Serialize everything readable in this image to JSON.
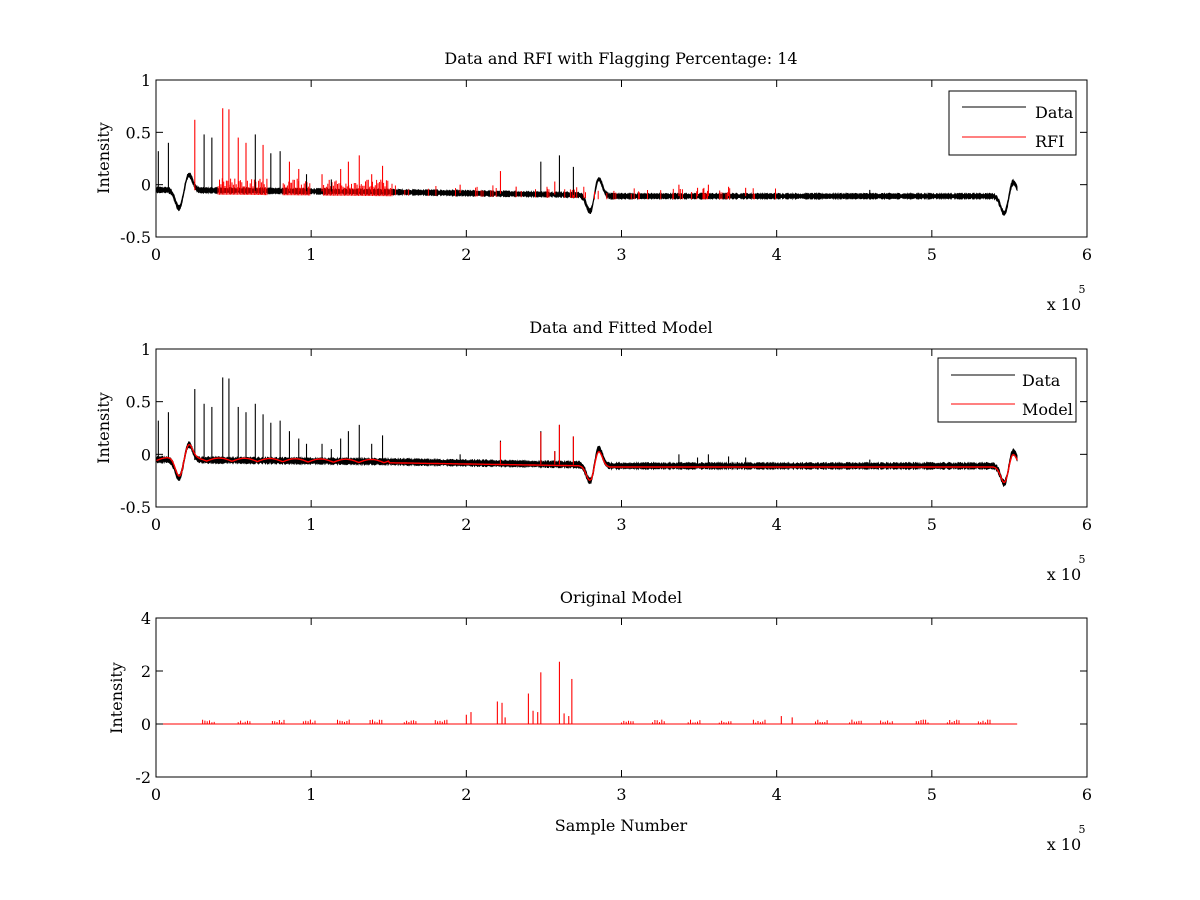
{
  "chart_data": [
    {
      "type": "line",
      "title": "Data and RFI with Flagging Percentage: 14",
      "xlabel": "",
      "ylabel": "Intensity",
      "xlim": [
        0,
        600000
      ],
      "ylim": [
        -0.5,
        1
      ],
      "x_ticks": [
        "0",
        "1",
        "2",
        "3",
        "4",
        "5",
        "6"
      ],
      "y_ticks": [
        "-0.5",
        "0",
        "0.5",
        "1"
      ],
      "x_exponent": {
        "base": "x 10",
        "power": "5"
      },
      "legend": {
        "position": "top-right",
        "entries": [
          {
            "name": "Data",
            "color": "#000000"
          },
          {
            "name": "RFI",
            "color": "#ff0000"
          }
        ]
      },
      "series": [
        {
          "name": "Data",
          "color": "#000000",
          "n_points": 555000,
          "baseline": -0.08,
          "noise": 0.02
        },
        {
          "name": "RFI",
          "color": "#ff0000"
        }
      ],
      "dips": [
        {
          "x": 15000,
          "y": -0.23
        },
        {
          "x": 21000,
          "y": 0.1
        },
        {
          "x": 280000,
          "y": -0.28
        },
        {
          "x": 285000,
          "y": 0.07
        },
        {
          "x": 547000,
          "y": -0.29
        },
        {
          "x": 552000,
          "y": 0.04
        }
      ],
      "spikes": [
        {
          "x": 1500,
          "y": 0.32,
          "s": 0
        },
        {
          "x": 8000,
          "y": 0.4,
          "s": 0
        },
        {
          "x": 25000,
          "y": 0.62,
          "s": 1
        },
        {
          "x": 31000,
          "y": 0.48,
          "s": 0
        },
        {
          "x": 36000,
          "y": 0.45,
          "s": 0
        },
        {
          "x": 43000,
          "y": 0.73,
          "s": 1
        },
        {
          "x": 47000,
          "y": 0.72,
          "s": 1
        },
        {
          "x": 53000,
          "y": 0.45,
          "s": 1
        },
        {
          "x": 58000,
          "y": 0.4,
          "s": 1
        },
        {
          "x": 64000,
          "y": 0.48,
          "s": 0
        },
        {
          "x": 69000,
          "y": 0.38,
          "s": 1
        },
        {
          "x": 74000,
          "y": 0.3,
          "s": 0
        },
        {
          "x": 80000,
          "y": 0.32,
          "s": 0
        },
        {
          "x": 86000,
          "y": 0.22,
          "s": 1
        },
        {
          "x": 92000,
          "y": 0.15,
          "s": 1
        },
        {
          "x": 97000,
          "y": 0.1,
          "s": 0
        },
        {
          "x": 107000,
          "y": 0.1,
          "s": 1
        },
        {
          "x": 113000,
          "y": 0.05,
          "s": 0
        },
        {
          "x": 119000,
          "y": 0.15,
          "s": 1
        },
        {
          "x": 124000,
          "y": 0.22,
          "s": 1
        },
        {
          "x": 131000,
          "y": 0.28,
          "s": 1
        },
        {
          "x": 139000,
          "y": 0.1,
          "s": 1
        },
        {
          "x": 146000,
          "y": 0.18,
          "s": 1
        },
        {
          "x": 196000,
          "y": 0.0,
          "s": 1
        },
        {
          "x": 222000,
          "y": 0.13,
          "s": 1
        },
        {
          "x": 248000,
          "y": 0.22,
          "s": 0
        },
        {
          "x": 257000,
          "y": 0.03,
          "s": 1
        },
        {
          "x": 260000,
          "y": 0.28,
          "s": 0
        },
        {
          "x": 269000,
          "y": 0.17,
          "s": 0
        },
        {
          "x": 337000,
          "y": 0.0,
          "s": 1
        },
        {
          "x": 349000,
          "y": -0.03,
          "s": 1
        },
        {
          "x": 356000,
          "y": 0.0,
          "s": 1
        },
        {
          "x": 369000,
          "y": -0.02,
          "s": 1
        },
        {
          "x": 380000,
          "y": -0.03,
          "s": 1
        },
        {
          "x": 460000,
          "y": -0.05,
          "s": 0
        }
      ],
      "rfi_bands": [
        [
          40000,
          72000
        ],
        [
          82000,
          100000
        ],
        [
          108000,
          153000
        ]
      ]
    },
    {
      "type": "line",
      "title": "Data and Fitted Model",
      "xlabel": "",
      "ylabel": "Intensity",
      "xlim": [
        0,
        600000
      ],
      "ylim": [
        -0.5,
        1
      ],
      "x_ticks": [
        "0",
        "1",
        "2",
        "3",
        "4",
        "5",
        "6"
      ],
      "y_ticks": [
        "-0.5",
        "0",
        "0.5",
        "1"
      ],
      "x_exponent": {
        "base": "x 10",
        "power": "5"
      },
      "legend": {
        "position": "top-right",
        "entries": [
          {
            "name": "Data",
            "color": "#000000"
          },
          {
            "name": "Model",
            "color": "#ff0000"
          }
        ]
      },
      "series": [
        {
          "name": "Data",
          "color": "#000000",
          "baseline": -0.08
        },
        {
          "name": "Model",
          "color": "#ff0000",
          "baseline": -0.1
        }
      ],
      "model_spikes": [
        {
          "x": 222000,
          "y": 0.12
        },
        {
          "x": 248000,
          "y": 0.21
        },
        {
          "x": 257000,
          "y": 0.03
        },
        {
          "x": 260000,
          "y": 0.28
        },
        {
          "x": 269000,
          "y": 0.17
        }
      ]
    },
    {
      "type": "line",
      "title": "Original Model",
      "xlabel": "Sample Number",
      "ylabel": "Intensity",
      "xlim": [
        0,
        600000
      ],
      "ylim": [
        -2,
        4
      ],
      "x_ticks": [
        "0",
        "1",
        "2",
        "3",
        "4",
        "5",
        "6"
      ],
      "y_ticks": [
        "-2",
        "0",
        "2",
        "4"
      ],
      "x_exponent": {
        "base": "x 10",
        "power": "5"
      },
      "series": [
        {
          "name": "Model",
          "color": "#ff0000",
          "baseline": 0
        }
      ],
      "x_end": 555000,
      "peaks": [
        {
          "x": 200000,
          "y": 0.35
        },
        {
          "x": 203000,
          "y": 0.45
        },
        {
          "x": 220000,
          "y": 0.85
        },
        {
          "x": 223000,
          "y": 0.8
        },
        {
          "x": 225000,
          "y": 0.25
        },
        {
          "x": 240000,
          "y": 1.15
        },
        {
          "x": 243000,
          "y": 0.5
        },
        {
          "x": 246000,
          "y": 0.45
        },
        {
          "x": 248000,
          "y": 1.95
        },
        {
          "x": 260000,
          "y": 2.35
        },
        {
          "x": 263000,
          "y": 0.4
        },
        {
          "x": 266000,
          "y": 0.3
        },
        {
          "x": 268000,
          "y": 1.7
        },
        {
          "x": 403000,
          "y": 0.3
        },
        {
          "x": 410000,
          "y": 0.25
        }
      ],
      "small_clusters": [
        30000,
        53000,
        75000,
        95000,
        117000,
        138000,
        160000,
        180000,
        300000,
        320000,
        343000,
        363000,
        385000,
        425000,
        447000,
        467000,
        490000,
        510000,
        530000
      ]
    }
  ]
}
